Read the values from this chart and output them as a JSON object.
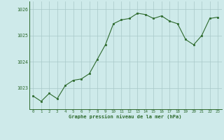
{
  "x": [
    0,
    1,
    2,
    3,
    4,
    5,
    6,
    7,
    8,
    9,
    10,
    11,
    12,
    13,
    14,
    15,
    16,
    17,
    18,
    19,
    20,
    21,
    22,
    23
  ],
  "y": [
    1022.7,
    1022.5,
    1022.8,
    1022.6,
    1023.1,
    1023.3,
    1023.35,
    1023.55,
    1024.1,
    1024.65,
    1025.45,
    1025.6,
    1025.65,
    1025.85,
    1025.8,
    1025.65,
    1025.75,
    1025.55,
    1025.45,
    1024.85,
    1024.65,
    1025.0,
    1025.65,
    1025.7
  ],
  "line_color": "#2d6a2d",
  "marker_color": "#2d6a2d",
  "bg_color": "#ceeaea",
  "grid_color": "#a8c8c8",
  "tick_color": "#2d6a2d",
  "label_color": "#2d6a2d",
  "xlabel": "Graphe pression niveau de la mer (hPa)",
  "yticks": [
    1023,
    1024,
    1025,
    1026
  ],
  "xticks": [
    0,
    1,
    2,
    3,
    4,
    5,
    6,
    7,
    8,
    9,
    10,
    11,
    12,
    13,
    14,
    15,
    16,
    17,
    18,
    19,
    20,
    21,
    22,
    23
  ],
  "ylim": [
    1022.2,
    1026.3
  ],
  "xlim": [
    -0.5,
    23.5
  ]
}
